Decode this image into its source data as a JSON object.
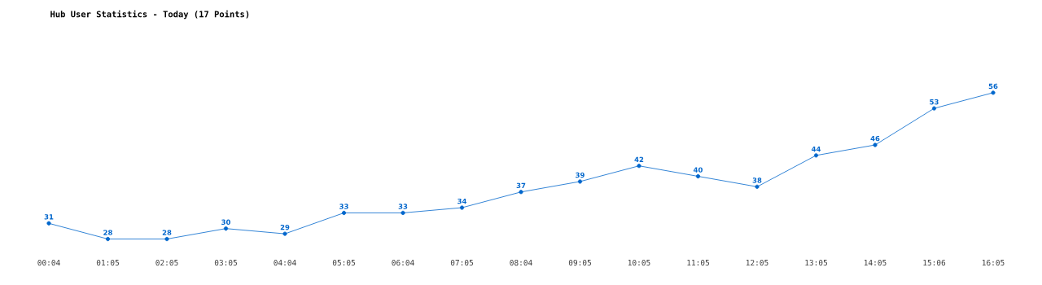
{
  "chart_data": {
    "type": "line",
    "title": "Hub User Statistics - Today (17 Points)",
    "categories": [
      "00:04",
      "01:05",
      "02:05",
      "03:05",
      "04:04",
      "05:05",
      "06:04",
      "07:05",
      "08:04",
      "09:05",
      "10:05",
      "11:05",
      "12:05",
      "13:05",
      "14:05",
      "15:06",
      "16:05"
    ],
    "values": [
      31,
      28,
      28,
      30,
      29,
      33,
      33,
      34,
      37,
      39,
      42,
      40,
      38,
      44,
      46,
      53,
      56
    ],
    "color": "#0066cc",
    "marker": "circle",
    "data_labels": true
  }
}
